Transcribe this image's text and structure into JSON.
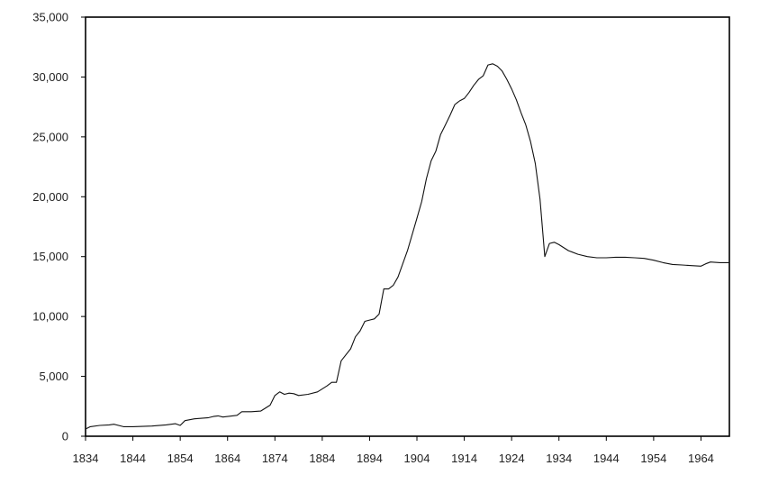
{
  "chart_data": {
    "type": "line",
    "title": "",
    "xlabel": "",
    "ylabel": "",
    "xlim": [
      1834,
      1970
    ],
    "ylim": [
      0,
      35000
    ],
    "grid": false,
    "x_ticks": [
      1834,
      1844,
      1854,
      1864,
      1874,
      1884,
      1894,
      1904,
      1914,
      1924,
      1934,
      1944,
      1954,
      1964
    ],
    "x_tick_labels": [
      "1834",
      "1844",
      "1854",
      "1864",
      "1874",
      "1884",
      "1894",
      "1904",
      "1914",
      "1924",
      "1934",
      "1944",
      "1954",
      "1964"
    ],
    "y_ticks": [
      0,
      5000,
      10000,
      15000,
      20000,
      25000,
      30000,
      35000
    ],
    "y_tick_labels": [
      "0",
      "5,000",
      "10,000",
      "15,000",
      "20,000",
      "25,000",
      "30,000",
      "35,000"
    ],
    "series": [
      {
        "points": [
          [
            1834,
            600
          ],
          [
            1835,
            800
          ],
          [
            1837,
            900
          ],
          [
            1839,
            950
          ],
          [
            1840,
            1000
          ],
          [
            1842,
            800
          ],
          [
            1844,
            800
          ],
          [
            1848,
            850
          ],
          [
            1851,
            950
          ],
          [
            1853,
            1050
          ],
          [
            1854,
            900
          ],
          [
            1855,
            1300
          ],
          [
            1857,
            1450
          ],
          [
            1860,
            1550
          ],
          [
            1861,
            1650
          ],
          [
            1862,
            1700
          ],
          [
            1863,
            1600
          ],
          [
            1866,
            1750
          ],
          [
            1867,
            2050
          ],
          [
            1869,
            2050
          ],
          [
            1871,
            2100
          ],
          [
            1873,
            2600
          ],
          [
            1874,
            3400
          ],
          [
            1875,
            3700
          ],
          [
            1876,
            3500
          ],
          [
            1877,
            3600
          ],
          [
            1878,
            3550
          ],
          [
            1879,
            3400
          ],
          [
            1881,
            3500
          ],
          [
            1883,
            3700
          ],
          [
            1885,
            4200
          ],
          [
            1886,
            4500
          ],
          [
            1887,
            4500
          ],
          [
            1888,
            6300
          ],
          [
            1890,
            7300
          ],
          [
            1891,
            8300
          ],
          [
            1892,
            8800
          ],
          [
            1893,
            9600
          ],
          [
            1894,
            9700
          ],
          [
            1895,
            9800
          ],
          [
            1896,
            10200
          ],
          [
            1897,
            12300
          ],
          [
            1898,
            12300
          ],
          [
            1899,
            12600
          ],
          [
            1900,
            13300
          ],
          [
            1902,
            15500
          ],
          [
            1904,
            18200
          ],
          [
            1905,
            19600
          ],
          [
            1906,
            21500
          ],
          [
            1907,
            23000
          ],
          [
            1908,
            23800
          ],
          [
            1909,
            25200
          ],
          [
            1910,
            26000
          ],
          [
            1911,
            26800
          ],
          [
            1912,
            27700
          ],
          [
            1913,
            28000
          ],
          [
            1914,
            28200
          ],
          [
            1915,
            28700
          ],
          [
            1916,
            29300
          ],
          [
            1917,
            29800
          ],
          [
            1918,
            30100
          ],
          [
            1919,
            31000
          ],
          [
            1920,
            31100
          ],
          [
            1921,
            30900
          ],
          [
            1922,
            30500
          ],
          [
            1923,
            29800
          ],
          [
            1924,
            29000
          ],
          [
            1925,
            28100
          ],
          [
            1926,
            27000
          ],
          [
            1927,
            26000
          ],
          [
            1928,
            24600
          ],
          [
            1929,
            22800
          ],
          [
            1930,
            19800
          ],
          [
            1931,
            15000
          ],
          [
            1932,
            16100
          ],
          [
            1933,
            16200
          ],
          [
            1934,
            16000
          ],
          [
            1936,
            15500
          ],
          [
            1938,
            15200
          ],
          [
            1940,
            15000
          ],
          [
            1942,
            14900
          ],
          [
            1944,
            14900
          ],
          [
            1946,
            14950
          ],
          [
            1948,
            14950
          ],
          [
            1950,
            14900
          ],
          [
            1952,
            14850
          ],
          [
            1954,
            14700
          ],
          [
            1956,
            14500
          ],
          [
            1958,
            14350
          ],
          [
            1960,
            14300
          ],
          [
            1962,
            14250
          ],
          [
            1964,
            14200
          ],
          [
            1965,
            14400
          ],
          [
            1966,
            14550
          ],
          [
            1968,
            14500
          ],
          [
            1970,
            14500
          ]
        ]
      }
    ]
  }
}
